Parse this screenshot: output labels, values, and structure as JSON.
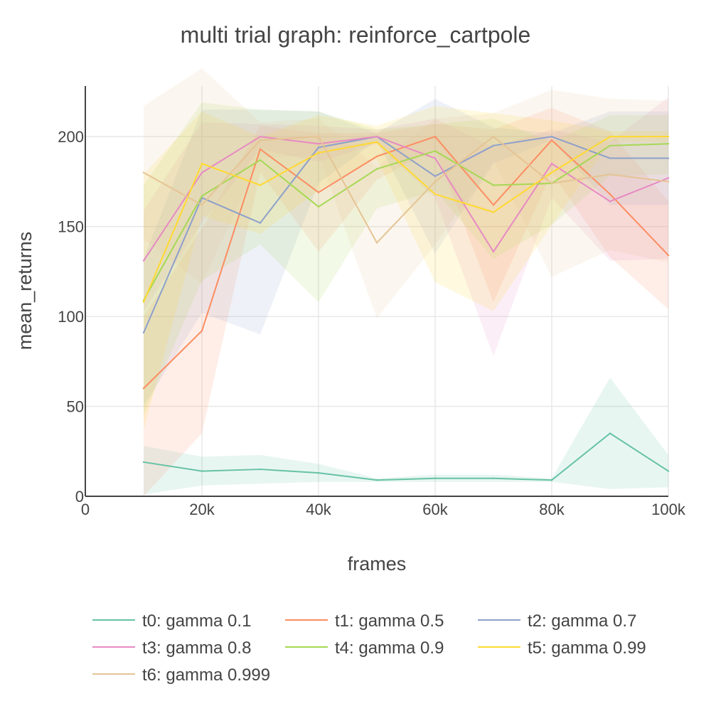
{
  "chart_data": {
    "type": "line",
    "title": "multi trial graph: reinforce_cartpole",
    "xlabel": "frames",
    "ylabel": "mean_returns",
    "xlim": [
      0,
      100000
    ],
    "ylim": [
      0,
      240
    ],
    "x_ticks": [
      0,
      20000,
      40000,
      60000,
      80000,
      100000
    ],
    "x_tick_labels": [
      "0",
      "20k",
      "40k",
      "60k",
      "80k",
      "100k"
    ],
    "y_ticks": [
      0,
      50,
      100,
      150,
      200
    ],
    "y_tick_labels": [
      "0",
      "50",
      "100",
      "150",
      "200"
    ],
    "grid": true,
    "legend_position": "bottom",
    "x": [
      10000,
      20000,
      30000,
      40000,
      50000,
      60000,
      70000,
      80000,
      90000,
      100000
    ],
    "series": [
      {
        "name": "t0: gamma 0.1",
        "color": "#66c2a5",
        "values": [
          19,
          14,
          15,
          13,
          9,
          10,
          10,
          9,
          35,
          14
        ],
        "lower": [
          1,
          6,
          7,
          8,
          8,
          8,
          8,
          8,
          4,
          5
        ],
        "upper": [
          28,
          22,
          23,
          18,
          10,
          12,
          12,
          10,
          66,
          23
        ]
      },
      {
        "name": "t1: gamma 0.5",
        "color": "#fc8d62",
        "values": [
          60,
          92,
          193,
          169,
          189,
          200,
          162,
          198,
          168,
          134
        ],
        "lower": [
          0,
          35,
          180,
          136,
          176,
          193,
          108,
          180,
          133,
          104
        ],
        "upper": [
          100,
          149,
          206,
          202,
          202,
          207,
          204,
          216,
          203,
          164
        ]
      },
      {
        "name": "t2: gamma 0.7",
        "color": "#8da0cb",
        "values": [
          91,
          166,
          152,
          194,
          200,
          178,
          195,
          200,
          188,
          188
        ],
        "lower": [
          50,
          102,
          90,
          174,
          198,
          135,
          185,
          198,
          162,
          162
        ],
        "upper": [
          132,
          215,
          215,
          214,
          202,
          221,
          205,
          202,
          214,
          214
        ]
      },
      {
        "name": "t3: gamma 0.8",
        "color": "#e78ac3",
        "values": [
          131,
          180,
          200,
          196,
          200,
          188,
          136,
          185,
          164,
          177
        ],
        "lower": [
          103,
          152,
          193,
          186,
          196,
          166,
          78,
          166,
          131,
          132
        ],
        "upper": [
          159,
          208,
          207,
          206,
          204,
          210,
          194,
          204,
          197,
          222
        ]
      },
      {
        "name": "t4: gamma 0.9",
        "color": "#a6d854",
        "values": [
          109,
          167,
          187,
          161,
          182,
          192,
          173,
          174,
          195,
          196
        ],
        "lower": [
          45,
          120,
          140,
          108,
          160,
          170,
          132,
          151,
          178,
          179
        ],
        "upper": [
          173,
          219,
          215,
          214,
          204,
          207,
          210,
          197,
          212,
          212
        ]
      },
      {
        "name": "t5: gamma 0.99",
        "color": "#ffd92f",
        "values": [
          108,
          185,
          173,
          191,
          197,
          168,
          158,
          180,
          200,
          200
        ],
        "lower": [
          37,
          156,
          146,
          170,
          188,
          119,
          103,
          151,
          197,
          197
        ],
        "upper": [
          179,
          214,
          200,
          212,
          206,
          217,
          213,
          209,
          203,
          203
        ]
      },
      {
        "name": "t6: gamma 0.999",
        "color": "#e5c494",
        "values": [
          180,
          162,
          198,
          200,
          141,
          175,
          200,
          174,
          179,
          175
        ],
        "lower": [
          143,
          118,
          188,
          190,
          99,
          140,
          187,
          122,
          137,
          130
        ],
        "upper": [
          217,
          238,
          208,
          210,
          183,
          210,
          213,
          226,
          221,
          220
        ]
      }
    ]
  }
}
